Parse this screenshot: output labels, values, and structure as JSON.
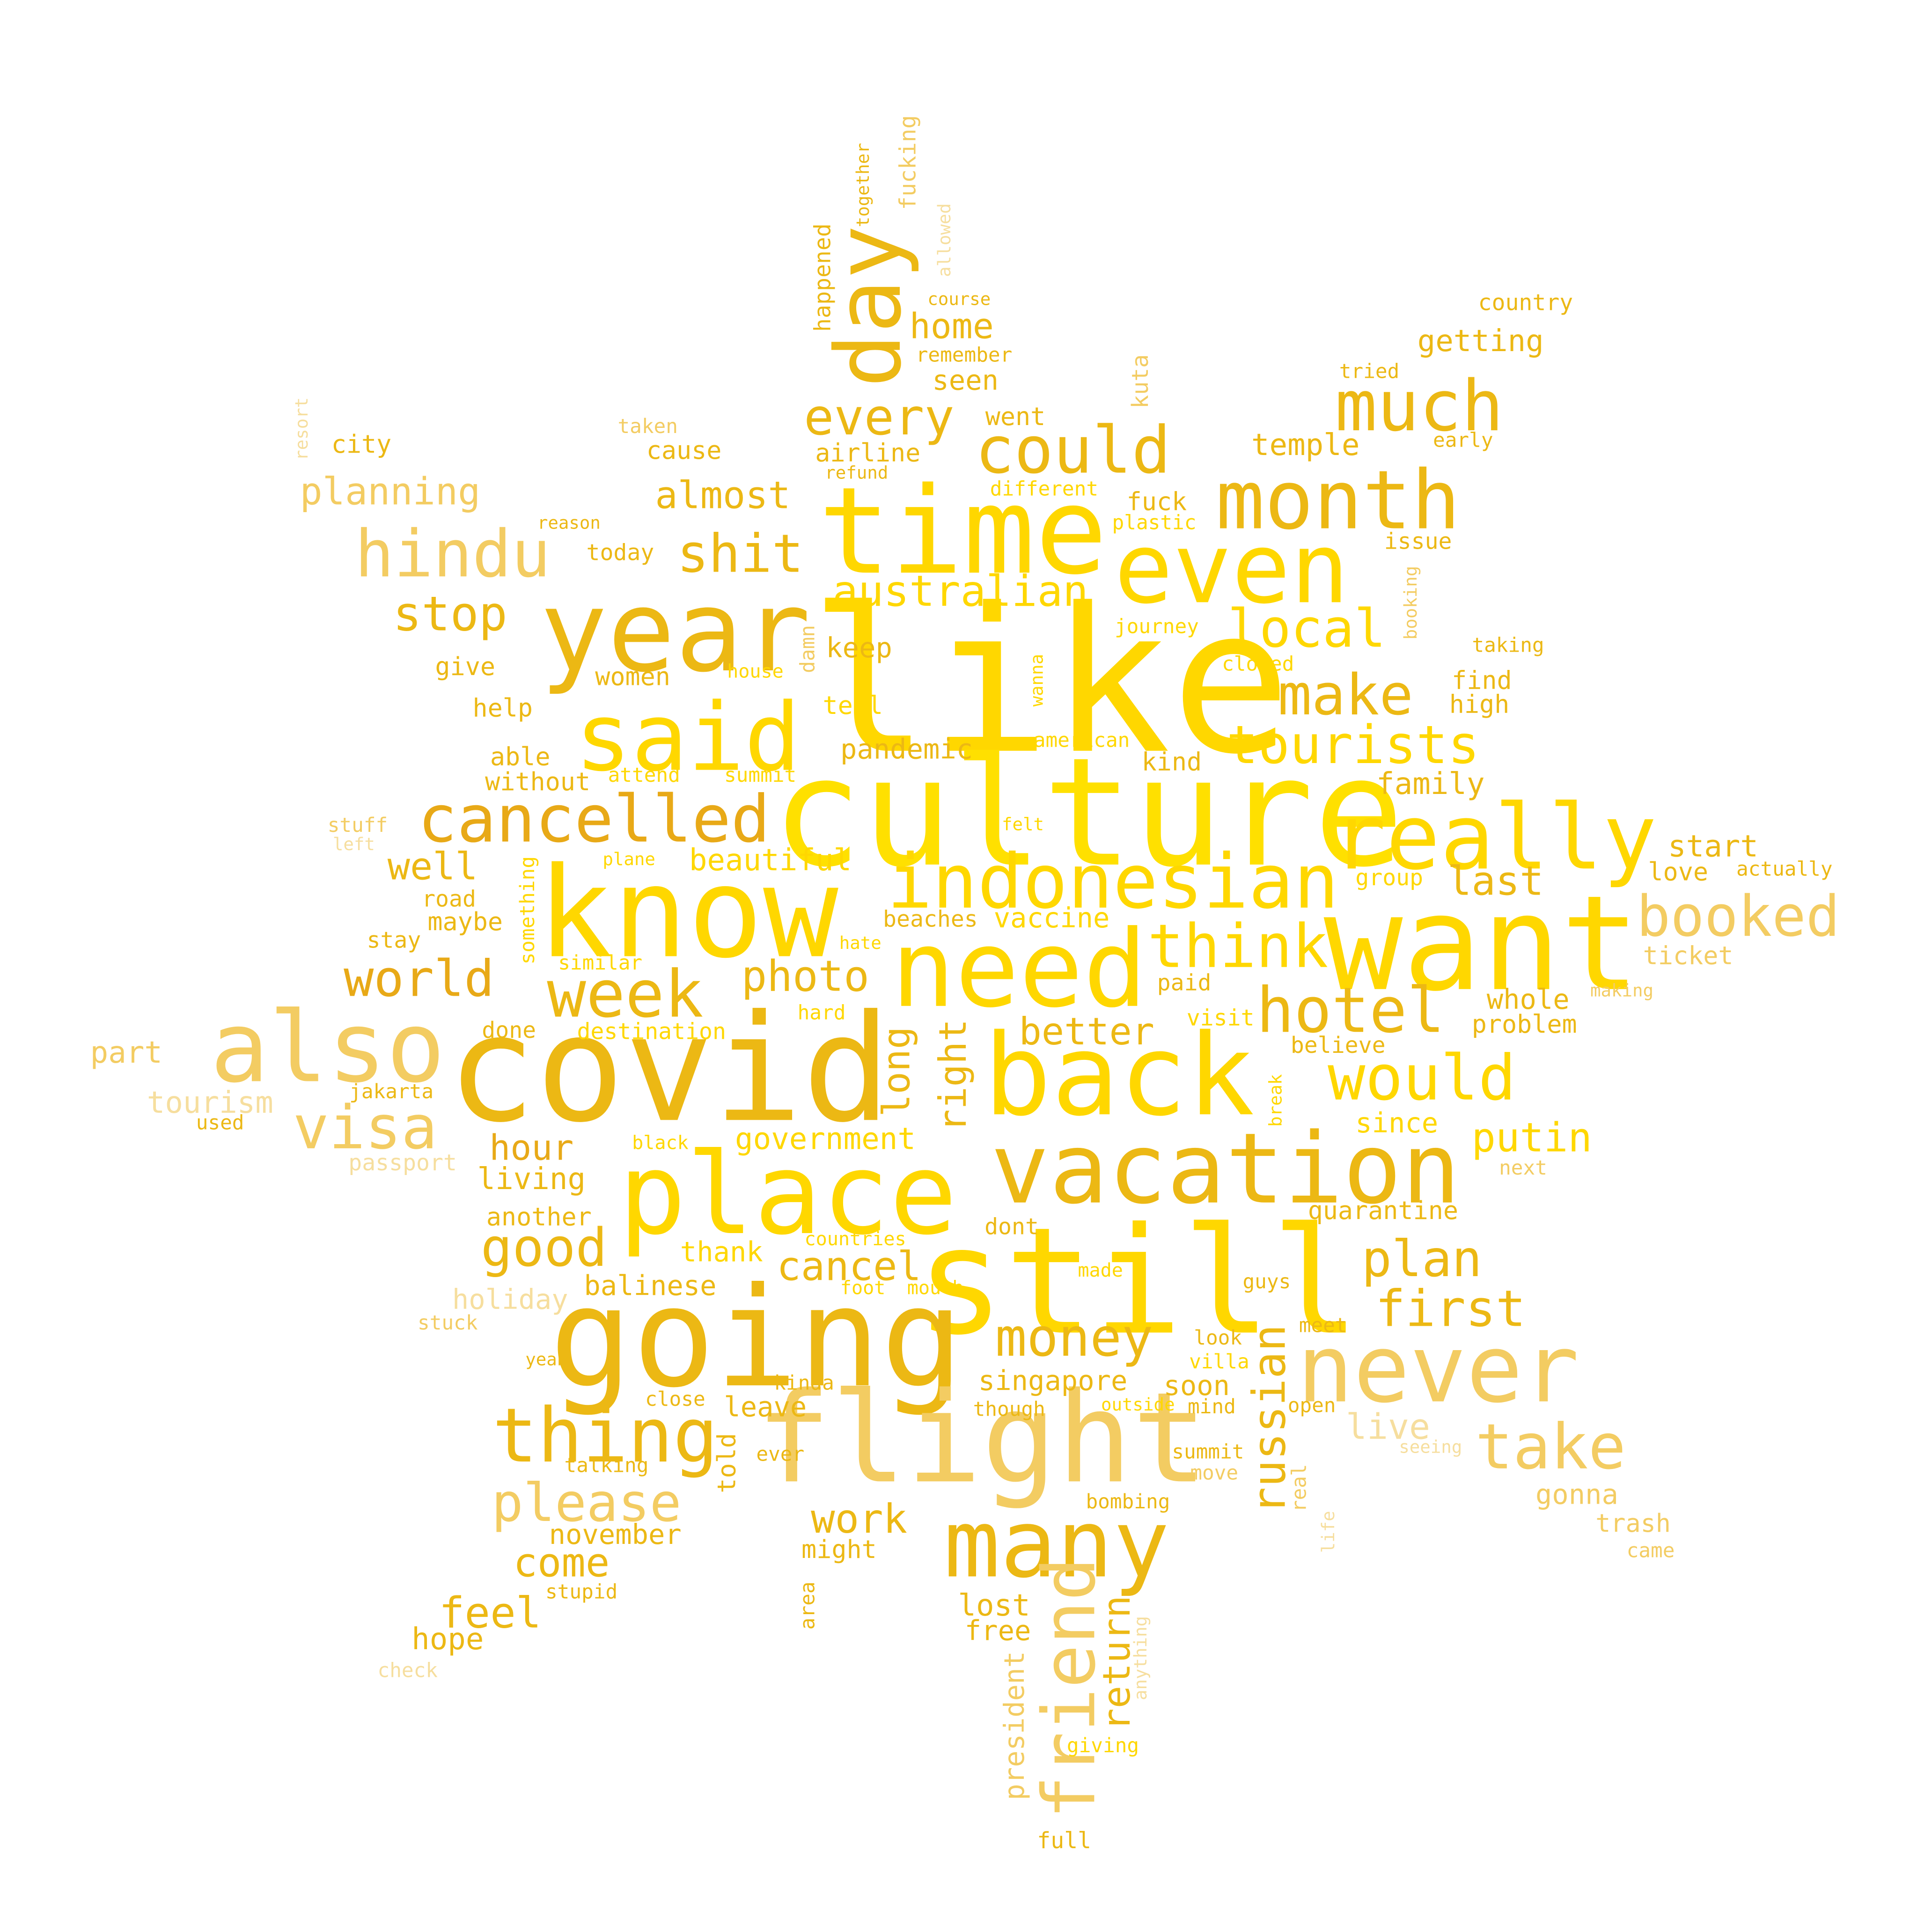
{
  "palette": {
    "background": "#ffffff",
    "gold": "#ECB814",
    "yellow": "#FFD700",
    "bright": "#FFE000",
    "amber": "#E8A917",
    "pale": "#F3CC62",
    "faint": "#F6DE9E"
  },
  "words": [
    {
      "text": "like",
      "color": "yellow"
    },
    {
      "text": "culture",
      "color": "bright"
    },
    {
      "text": "covid",
      "color": "gold"
    },
    {
      "text": "still",
      "color": "yellow"
    },
    {
      "text": "going",
      "color": "gold"
    },
    {
      "text": "know",
      "color": "yellow"
    },
    {
      "text": "want",
      "color": "yellow"
    },
    {
      "text": "flight",
      "color": "pale"
    },
    {
      "text": "time",
      "color": "yellow"
    },
    {
      "text": "year",
      "color": "gold"
    },
    {
      "text": "place",
      "color": "yellow"
    },
    {
      "text": "back",
      "color": "yellow"
    },
    {
      "text": "need",
      "color": "yellow"
    },
    {
      "text": "also",
      "color": "pale"
    },
    {
      "text": "even",
      "color": "yellow"
    },
    {
      "text": "vacation",
      "color": "gold"
    },
    {
      "text": "said",
      "color": "yellow"
    },
    {
      "text": "never",
      "color": "pale"
    },
    {
      "text": "many",
      "color": "gold"
    },
    {
      "text": "really",
      "color": "yellow"
    },
    {
      "text": "day",
      "color": "gold"
    },
    {
      "text": "month",
      "color": "gold"
    },
    {
      "text": "indonesian",
      "color": "yellow"
    },
    {
      "text": "friend",
      "color": "pale"
    },
    {
      "text": "thing",
      "color": "gold"
    },
    {
      "text": "cancelled",
      "color": "amber"
    },
    {
      "text": "much",
      "color": "gold"
    },
    {
      "text": "could",
      "color": "gold"
    },
    {
      "text": "hindu",
      "color": "pale"
    },
    {
      "text": "week",
      "color": "gold"
    },
    {
      "text": "take",
      "color": "pale"
    },
    {
      "text": "hotel",
      "color": "gold"
    },
    {
      "text": "think",
      "color": "yellow"
    },
    {
      "text": "would",
      "color": "yellow"
    },
    {
      "text": "booked",
      "color": "pale"
    },
    {
      "text": "shit",
      "color": "gold"
    },
    {
      "text": "visa",
      "color": "pale"
    },
    {
      "text": "tourists",
      "color": "yellow"
    },
    {
      "text": "make",
      "color": "gold"
    },
    {
      "text": "please",
      "color": "pale"
    },
    {
      "text": "money",
      "color": "gold"
    },
    {
      "text": "every",
      "color": "gold"
    },
    {
      "text": "plan",
      "color": "gold"
    },
    {
      "text": "world",
      "color": "amber"
    },
    {
      "text": "good",
      "color": "gold"
    },
    {
      "text": "first",
      "color": "gold"
    },
    {
      "text": "stop",
      "color": "gold"
    },
    {
      "text": "local",
      "color": "yellow"
    },
    {
      "text": "australian",
      "color": "yellow"
    },
    {
      "text": "photo",
      "color": "gold"
    },
    {
      "text": "russian",
      "color": "gold"
    },
    {
      "text": "putin",
      "color": "yellow"
    },
    {
      "text": "feel",
      "color": "gold"
    },
    {
      "text": "work",
      "color": "gold"
    },
    {
      "text": "come",
      "color": "gold"
    },
    {
      "text": "long",
      "color": "gold"
    },
    {
      "text": "right",
      "color": "gold"
    },
    {
      "text": "cancel",
      "color": "gold"
    },
    {
      "text": "almost",
      "color": "gold"
    },
    {
      "text": "better",
      "color": "gold"
    },
    {
      "text": "well",
      "color": "gold"
    },
    {
      "text": "last",
      "color": "gold"
    },
    {
      "text": "return",
      "color": "gold"
    },
    {
      "text": "planning",
      "color": "pale"
    },
    {
      "text": "hour",
      "color": "amber"
    },
    {
      "text": "live",
      "color": "faint"
    },
    {
      "text": "home",
      "color": "gold"
    },
    {
      "text": "gonna",
      "color": "pale"
    },
    {
      "text": "soon",
      "color": "gold"
    },
    {
      "text": "getting",
      "color": "gold"
    },
    {
      "text": "temple",
      "color": "gold"
    },
    {
      "text": "beautiful",
      "color": "yellow"
    },
    {
      "text": "singapore",
      "color": "gold"
    },
    {
      "text": "vaccine",
      "color": "yellow"
    },
    {
      "text": "government",
      "color": "yellow"
    },
    {
      "text": "pandemic",
      "color": "gold"
    },
    {
      "text": "keep",
      "color": "gold"
    },
    {
      "text": "seen",
      "color": "gold"
    },
    {
      "text": "family",
      "color": "gold"
    },
    {
      "text": "start",
      "color": "gold"
    },
    {
      "text": "balinese",
      "color": "gold"
    },
    {
      "text": "quarantine",
      "color": "gold"
    },
    {
      "text": "living",
      "color": "gold"
    },
    {
      "text": "another",
      "color": "gold"
    },
    {
      "text": "lost",
      "color": "gold"
    },
    {
      "text": "free",
      "color": "gold"
    },
    {
      "text": "november",
      "color": "gold"
    },
    {
      "text": "hope",
      "color": "gold"
    },
    {
      "text": "president",
      "color": "pale"
    },
    {
      "text": "thank",
      "color": "yellow"
    },
    {
      "text": "since",
      "color": "yellow"
    },
    {
      "text": "whole",
      "color": "gold"
    },
    {
      "text": "problem",
      "color": "gold"
    },
    {
      "text": "ticket",
      "color": "pale"
    },
    {
      "text": "trash",
      "color": "pale"
    },
    {
      "text": "holiday",
      "color": "faint"
    },
    {
      "text": "tourism",
      "color": "faint"
    },
    {
      "text": "part",
      "color": "pale"
    },
    {
      "text": "leave",
      "color": "gold"
    },
    {
      "text": "told",
      "color": "gold"
    },
    {
      "text": "might",
      "color": "gold"
    },
    {
      "text": "cause",
      "color": "gold"
    },
    {
      "text": "airline",
      "color": "gold"
    },
    {
      "text": "went",
      "color": "gold"
    },
    {
      "text": "today",
      "color": "gold"
    },
    {
      "text": "women",
      "color": "gold"
    },
    {
      "text": "give",
      "color": "gold"
    },
    {
      "text": "help",
      "color": "gold"
    },
    {
      "text": "able",
      "color": "gold"
    },
    {
      "text": "without",
      "color": "gold"
    },
    {
      "text": "city",
      "color": "gold"
    },
    {
      "text": "tell",
      "color": "yellow"
    },
    {
      "text": "find",
      "color": "gold"
    },
    {
      "text": "high",
      "color": "gold"
    },
    {
      "text": "kind",
      "color": "gold"
    },
    {
      "text": "love",
      "color": "gold"
    },
    {
      "text": "road",
      "color": "gold"
    },
    {
      "text": "maybe",
      "color": "gold"
    },
    {
      "text": "stay",
      "color": "gold"
    },
    {
      "text": "done",
      "color": "gold"
    },
    {
      "text": "destination",
      "color": "yellow"
    },
    {
      "text": "happened",
      "color": "gold"
    },
    {
      "text": "fucking",
      "color": "pale"
    },
    {
      "text": "country",
      "color": "gold"
    },
    {
      "text": "kuta",
      "color": "pale"
    },
    {
      "text": "fuck",
      "color": "gold"
    },
    {
      "text": "issue",
      "color": "gold"
    },
    {
      "text": "tried",
      "color": "gold"
    },
    {
      "text": "early",
      "color": "gold"
    },
    {
      "text": "damn",
      "color": "pale"
    },
    {
      "text": "taking",
      "color": "gold"
    },
    {
      "text": "actually",
      "color": "gold"
    },
    {
      "text": "group",
      "color": "yellow"
    },
    {
      "text": "beaches",
      "color": "gold"
    },
    {
      "text": "paid",
      "color": "gold"
    },
    {
      "text": "visit",
      "color": "yellow"
    },
    {
      "text": "believe",
      "color": "gold"
    },
    {
      "text": "jakarta",
      "color": "gold"
    },
    {
      "text": "used",
      "color": "gold"
    },
    {
      "text": "stuff",
      "color": "pale"
    },
    {
      "text": "left",
      "color": "faint"
    },
    {
      "text": "something",
      "color": "yellow"
    },
    {
      "text": "similar",
      "color": "yellow"
    },
    {
      "text": "hard",
      "color": "yellow"
    },
    {
      "text": "making",
      "color": "pale"
    },
    {
      "text": "next",
      "color": "pale"
    },
    {
      "text": "guys",
      "color": "gold"
    },
    {
      "text": "meet",
      "color": "gold"
    },
    {
      "text": "villa",
      "color": "yellow"
    },
    {
      "text": "look",
      "color": "gold"
    },
    {
      "text": "mind",
      "color": "gold"
    },
    {
      "text": "open",
      "color": "gold"
    },
    {
      "text": "seeing",
      "color": "faint"
    },
    {
      "text": "summit",
      "color": "gold"
    },
    {
      "text": "move",
      "color": "pale"
    },
    {
      "text": "real",
      "color": "pale"
    },
    {
      "text": "life",
      "color": "faint"
    },
    {
      "text": "came",
      "color": "pale"
    },
    {
      "text": "bombing",
      "color": "gold"
    },
    {
      "text": "giving",
      "color": "yellow"
    },
    {
      "text": "anything",
      "color": "faint"
    },
    {
      "text": "full",
      "color": "gold"
    },
    {
      "text": "area",
      "color": "gold"
    },
    {
      "text": "stupid",
      "color": "gold"
    },
    {
      "text": "check",
      "color": "faint"
    },
    {
      "text": "talking",
      "color": "gold"
    },
    {
      "text": "ever",
      "color": "gold"
    },
    {
      "text": "close",
      "color": "gold"
    },
    {
      "text": "kinda",
      "color": "gold"
    },
    {
      "text": "though",
      "color": "gold"
    },
    {
      "text": "outside",
      "color": "yellow"
    },
    {
      "text": "yeah",
      "color": "gold"
    },
    {
      "text": "stuck",
      "color": "pale"
    },
    {
      "text": "foot",
      "color": "yellow"
    },
    {
      "text": "mouth",
      "color": "yellow"
    },
    {
      "text": "made",
      "color": "yellow"
    },
    {
      "text": "countries",
      "color": "yellow"
    },
    {
      "text": "dont",
      "color": "gold"
    },
    {
      "text": "black",
      "color": "yellow"
    },
    {
      "text": "break",
      "color": "yellow"
    },
    {
      "text": "passport",
      "color": "faint"
    },
    {
      "text": "attend",
      "color": "yellow"
    },
    {
      "text": "summit",
      "color": "yellow"
    },
    {
      "text": "plane",
      "color": "yellow"
    },
    {
      "text": "hate",
      "color": "yellow"
    },
    {
      "text": "felt",
      "color": "yellow"
    },
    {
      "text": "american",
      "color": "yellow"
    },
    {
      "text": "wanna",
      "color": "yellow"
    },
    {
      "text": "house",
      "color": "yellow"
    },
    {
      "text": "closed",
      "color": "yellow"
    },
    {
      "text": "journey",
      "color": "yellow"
    },
    {
      "text": "booking",
      "color": "pale"
    },
    {
      "text": "plastic",
      "color": "yellow"
    },
    {
      "text": "different",
      "color": "yellow"
    },
    {
      "text": "refund",
      "color": "gold"
    },
    {
      "text": "reason",
      "color": "gold"
    },
    {
      "text": "taken",
      "color": "pale"
    },
    {
      "text": "resort",
      "color": "faint"
    },
    {
      "text": "remember",
      "color": "gold"
    },
    {
      "text": "course",
      "color": "gold"
    },
    {
      "text": "together",
      "color": "gold"
    },
    {
      "text": "allowed",
      "color": "faint"
    }
  ]
}
